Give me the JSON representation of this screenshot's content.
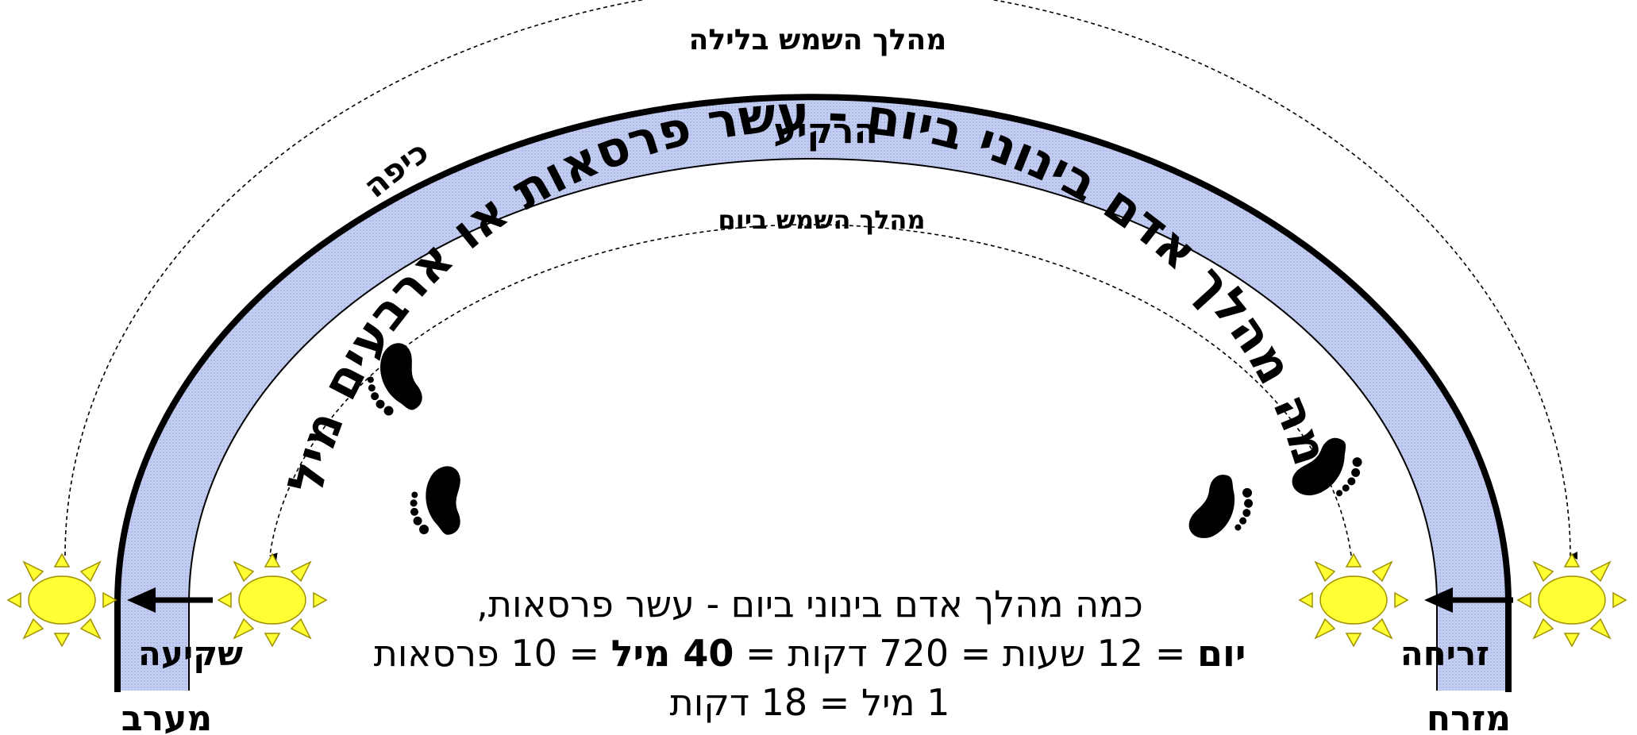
{
  "labels": {
    "night_path": "מהלך השמש בלילה",
    "sky": "הרקיע",
    "dome": "כיפה",
    "day_path": "מהלך השמש ביום",
    "arc_text": "כמה מהלך אדם בינוני ביום - עשר פרסאות או ארבעים מיל",
    "sunset": "שקיעה",
    "sunrise": "זריחה",
    "west": "מערב",
    "east": "מזרח"
  },
  "caption": {
    "line1": "כמה מהלך אדם בינוני ביום - עשר פרסאות,",
    "line2": {
      "day": "יום",
      "eq1": " = 12 שעות = 720 דקות = ",
      "mil40": "40 מיל",
      "eq2": " = 10 פרסאות"
    },
    "line3": "1 מיל = 18 דקות"
  },
  "icons": [
    "sun-icon",
    "footprints-icon",
    "arrow-left-icon"
  ],
  "colors": {
    "band_fill": "#c3cdf2",
    "sun_fill": "#ffff33",
    "sun_stroke": "#a09000",
    "ink": "#000000"
  }
}
